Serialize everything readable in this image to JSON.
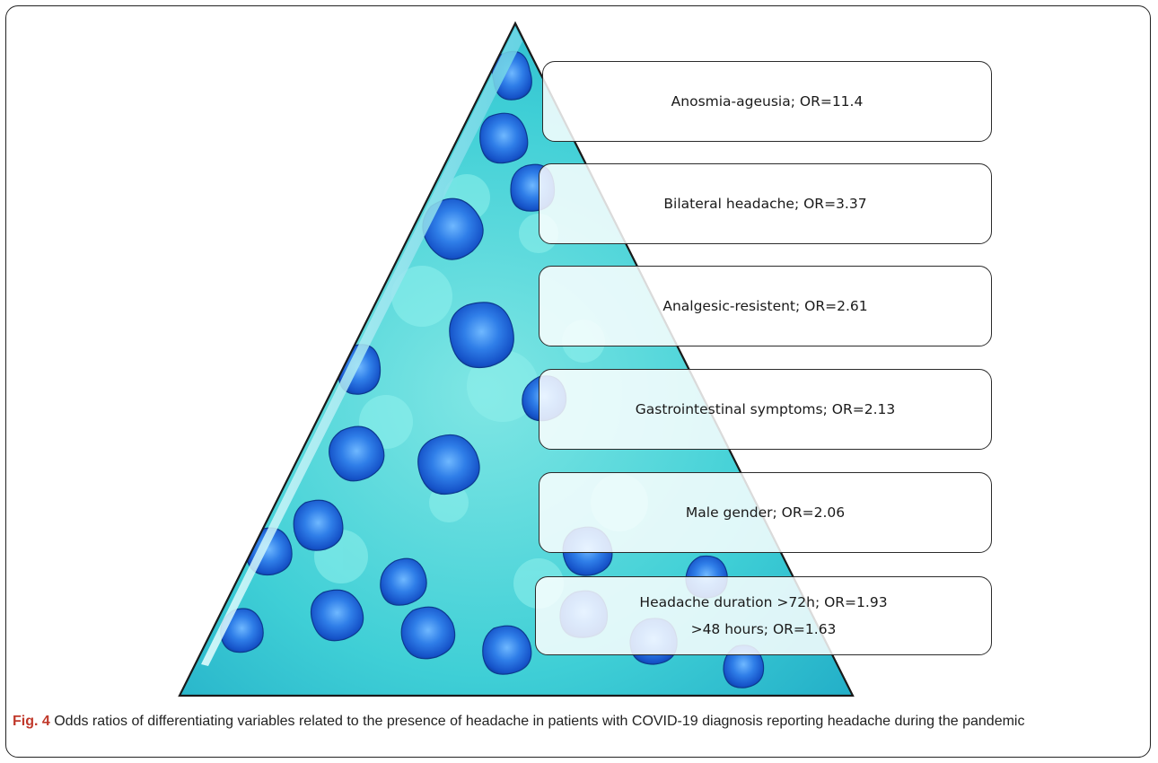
{
  "figure": {
    "layers": [
      {
        "lines": [
          "Anosmia-ageusia; OR=11.4"
        ]
      },
      {
        "lines": [
          "Bilateral headache; OR=3.37"
        ]
      },
      {
        "lines": [
          "Analgesic-resistent; OR=2.61"
        ]
      },
      {
        "lines": [
          "Gastrointestinal symptoms; OR=2.13"
        ]
      },
      {
        "lines": [
          "Male gender; OR=2.06"
        ]
      },
      {
        "lines": [
          "Headache duration >72h; OR=1.93",
          ">48 hours; OR=1.63"
        ]
      }
    ],
    "background": "virus-particles-image"
  },
  "caption": {
    "label": "Fig. 4",
    "text": " Odds ratios of differentiating variables related to the presence of headache in patients with COVID-19 diagnosis reporting headache during the pandemic"
  },
  "colors": {
    "caption_label": "#c0392b",
    "virus_base": "#3fd0d8",
    "virus_particles": "#1f6fe0"
  }
}
